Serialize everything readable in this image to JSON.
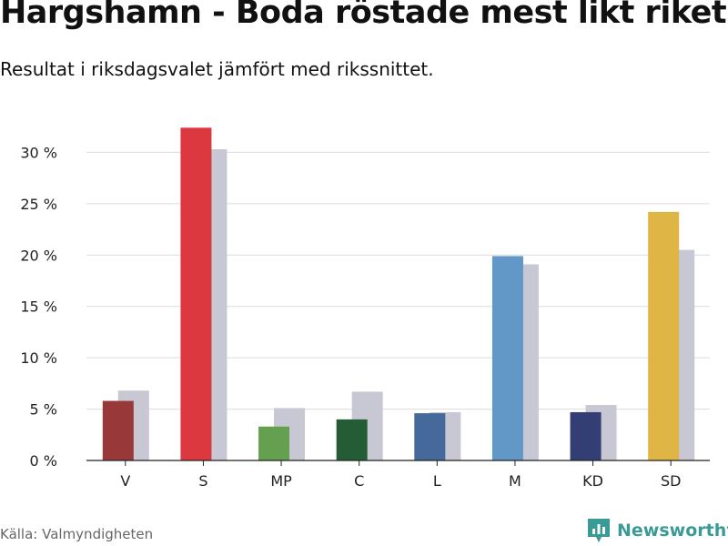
{
  "header": {
    "title": "Hargshamn - Boda röstade mest likt riket",
    "subtitle": "Resultat i riksdagsvalet jämfört med rikssnittet."
  },
  "footer": {
    "source": "Källa: Valmyndigheten",
    "brand": "Newsworthy",
    "brand_icon": "bar-chart-logo-icon",
    "brand_color": "#3a9b96"
  },
  "chart_data": {
    "type": "bar",
    "title": "Hargshamn - Boda röstade mest likt riket",
    "subtitle": "Resultat i riksdagsvalet jämfört med rikssnittet.",
    "categories": [
      "V",
      "S",
      "MP",
      "C",
      "L",
      "M",
      "KD",
      "SD"
    ],
    "series": [
      {
        "values": [
          5.8,
          32.4,
          3.3,
          4.0,
          4.6,
          19.9,
          4.7,
          24.2
        ],
        "colors": [
          "#983838",
          "#dc3840",
          "#64a050",
          "#245c36",
          "#45699a",
          "#6298c8",
          "#333e74",
          "#dfb645"
        ]
      },
      {
        "values": [
          6.8,
          30.3,
          5.1,
          6.7,
          4.7,
          19.1,
          5.4,
          20.5
        ],
        "color": "#c8c8d4"
      }
    ],
    "yticks": [
      "0 %",
      "5 %",
      "10 %",
      "15 %",
      "20 %",
      "25 %",
      "30 %"
    ],
    "ylim": [
      0,
      35
    ],
    "grid": true,
    "legend": "none"
  }
}
